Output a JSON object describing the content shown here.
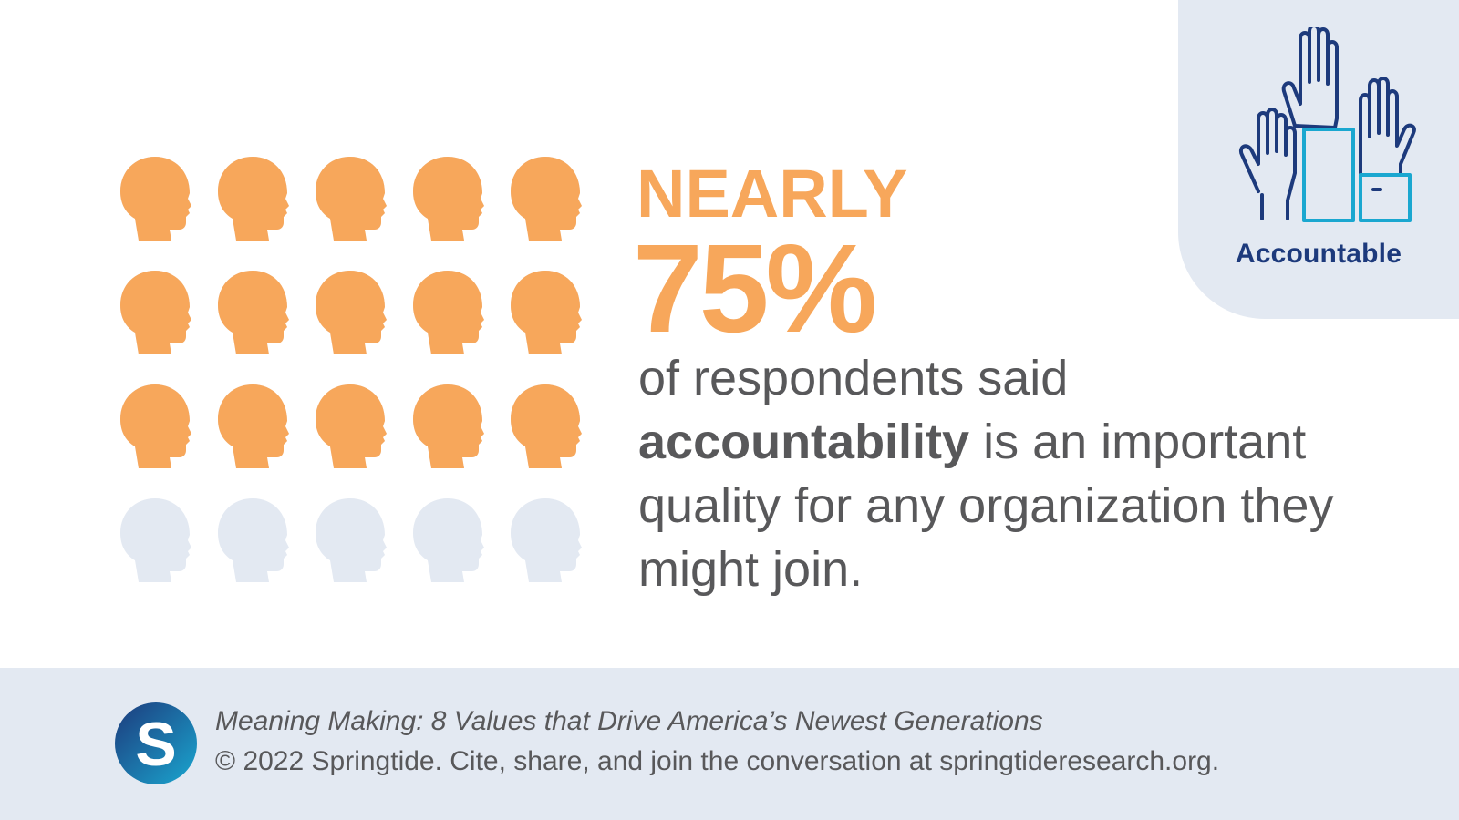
{
  "badge": {
    "icon": "raised-hands-icon",
    "label": "Accountable",
    "color": "#1d3a7c",
    "accent": "#1aa7d0"
  },
  "icon_grid": {
    "icon": "head-profile-icon",
    "total": 20,
    "filled_fraction": 0.75,
    "filled_color": "#f7a75b",
    "empty_color": "#e3e9f2"
  },
  "stat": {
    "qualifier": "NEARLY",
    "value": "75%",
    "desc_before": "of respondents said ",
    "desc_highlight": "accountability",
    "desc_after": " is an important quality for any organization they might join."
  },
  "footer": {
    "logo": "springtide-s-logo",
    "logo_letter": "S",
    "title": "Meaning Making: 8 Values that Drive America’s Newest Generations",
    "credit": "© 2022 Springtide. Cite, share, and join the conversation at springtideresearch.org."
  }
}
